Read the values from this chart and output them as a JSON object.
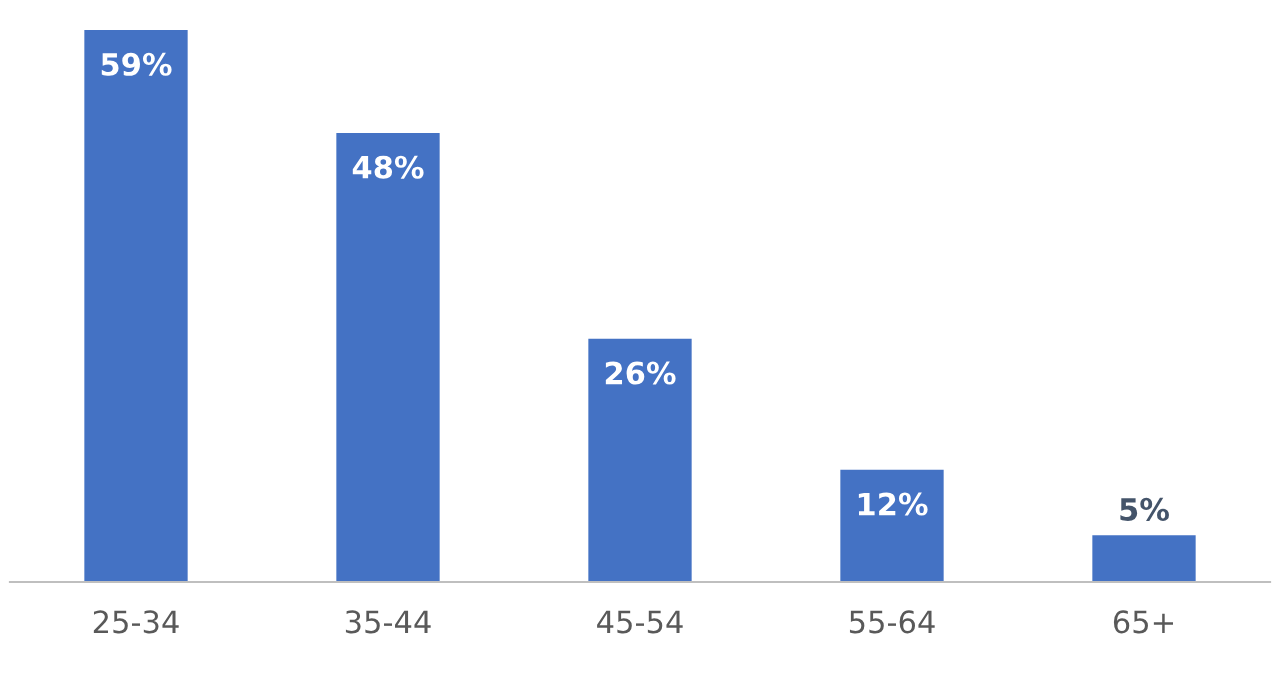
{
  "chart_data": {
    "type": "bar",
    "categories": [
      "25-34",
      "35-44",
      "45-54",
      "55-64",
      "65+"
    ],
    "values": [
      59,
      48,
      26,
      12,
      5
    ],
    "value_labels": [
      "59%",
      "48%",
      "26%",
      "12%",
      "5%"
    ],
    "color": "#4472c4",
    "grid": false
  }
}
